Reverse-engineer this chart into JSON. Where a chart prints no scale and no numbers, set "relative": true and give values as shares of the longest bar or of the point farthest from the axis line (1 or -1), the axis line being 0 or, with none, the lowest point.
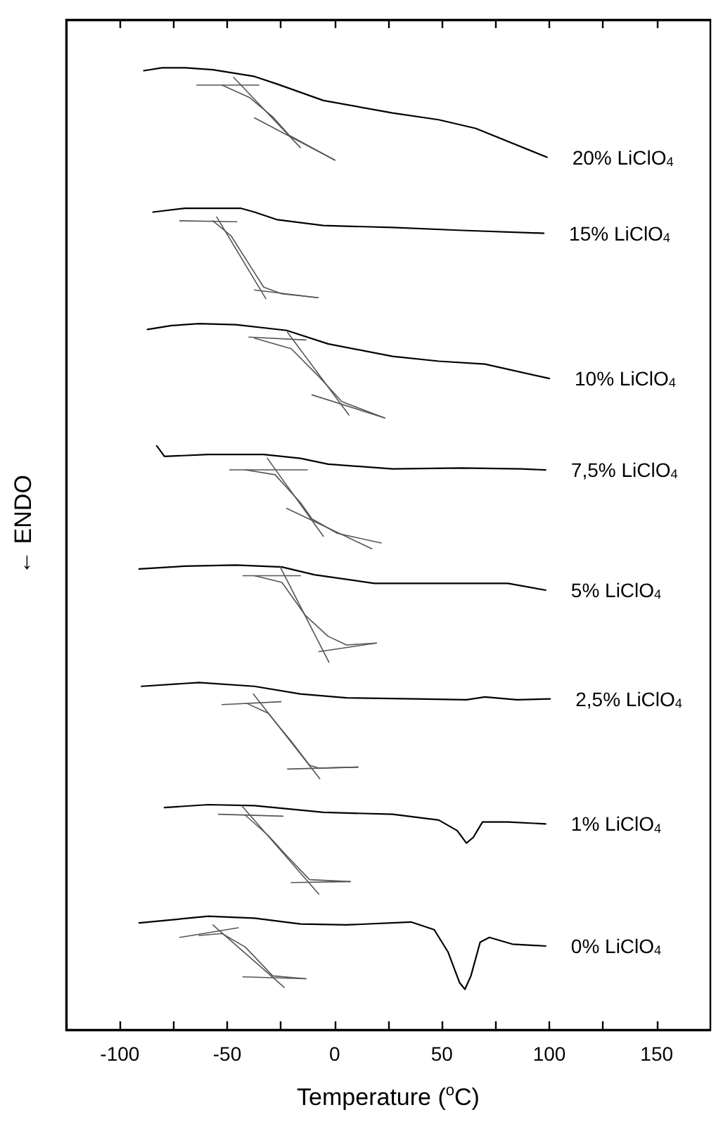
{
  "chart_data": {
    "type": "line",
    "relative": true,
    "marker": "none",
    "xlabel": "Temperature ($^{o}$C)",
    "ylabel": "← ENDO",
    "xlim": [
      -125,
      175
    ],
    "xticks": [
      -100,
      {
        "value": -75,
        "label": null
      },
      -50,
      {
        "value": -25,
        "label": null
      },
      0,
      {
        "value": 25,
        "label": null
      },
      50,
      {
        "value": 75,
        "label": null
      },
      100,
      {
        "value": 125,
        "label": null
      },
      150
    ],
    "series": [
      {
        "name": "20% LiClO$_{4}$",
        "color": "#000000",
        "x": [
          -88.8,
          -80.3,
          -69.5,
          -56.7,
          -37.3,
          -26.6,
          -5.2,
          27.0,
          48.5,
          65.7,
          98.9
        ],
        "values": [
          0.997,
          1.0,
          1.0,
          0.998,
          0.991,
          0.983,
          0.966,
          0.953,
          0.946,
          0.937,
          0.907
        ]
      },
      {
        "color": "#555555",
        "x": [
          -64.2,
          -35.2
        ],
        "values": [
          0.982,
          0.982
        ]
      },
      {
        "color": "#555555",
        "x": [
          -47.0,
          -15.9
        ],
        "values": [
          0.99,
          0.917
        ]
      },
      {
        "color": "#555555",
        "x": [
          -37.3,
          0.2
        ],
        "values": [
          0.948,
          0.904
        ]
      },
      {
        "color": "#555555",
        "x": [
          -52.4,
          -39.5,
          -28.8,
          -21.2,
          0.2
        ],
        "values": [
          0.982,
          0.969,
          0.949,
          0.93,
          0.904
        ]
      },
      {
        "name": "15% LiClO$_{4}$",
        "color": "#000000",
        "x": [
          -84.5,
          -69.5,
          -52.4,
          -43.8,
          -37.3,
          -26.6,
          -5.2,
          27.0,
          59.2,
          97.4
        ],
        "values": [
          0.85,
          0.854,
          0.854,
          0.854,
          0.85,
          0.842,
          0.836,
          0.834,
          0.831,
          0.828
        ]
      },
      {
        "color": "#555555",
        "x": [
          -72.1,
          -45.5
        ],
        "values": [
          0.841,
          0.84
        ]
      },
      {
        "color": "#555555",
        "x": [
          -54.9,
          -32.0
        ],
        "values": [
          0.845,
          0.76
        ]
      },
      {
        "color": "#555555",
        "x": [
          -37.3,
          -7.7
        ],
        "values": [
          0.769,
          0.761
        ]
      },
      {
        "color": "#555555",
        "x": [
          -56.7,
          -48.1,
          -37.3,
          -33.0,
          -24.5,
          -7.7
        ],
        "values": [
          0.841,
          0.825,
          0.787,
          0.772,
          0.765,
          0.761
        ]
      },
      {
        "name": "10% LiClO$_{4}$",
        "color": "#000000",
        "x": [
          -87.1,
          -76.0,
          -63.1,
          -45.9,
          -22.3,
          -3.0,
          27.0,
          48.5,
          70.0,
          100.0
        ],
        "values": [
          0.728,
          0.732,
          0.734,
          0.733,
          0.727,
          0.713,
          0.7,
          0.695,
          0.692,
          0.677
        ]
      },
      {
        "color": "#555555",
        "x": [
          -39.9,
          -13.3
        ],
        "values": [
          0.72,
          0.717
        ]
      },
      {
        "color": "#555555",
        "x": [
          -21.9,
          6.7
        ],
        "values": [
          0.725,
          0.639
        ]
      },
      {
        "color": "#555555",
        "x": [
          -10.5,
          23.4
        ],
        "values": [
          0.66,
          0.636
        ]
      },
      {
        "color": "#555555",
        "x": [
          -37.3,
          -20.2,
          -7.3,
          3.4,
          23.4
        ],
        "values": [
          0.719,
          0.708,
          0.679,
          0.653,
          0.636
        ]
      },
      {
        "name": "7,5% LiClO$_{4}$",
        "color": "#000000",
        "x": [
          -82.8,
          -79.2,
          -58.8,
          -33.0,
          -15.9,
          -3.0,
          27.0,
          59.2,
          87.1,
          98.3
        ],
        "values": [
          0.607,
          0.596,
          0.598,
          0.598,
          0.594,
          0.588,
          0.583,
          0.584,
          0.583,
          0.582
        ]
      },
      {
        "color": "#555555",
        "x": [
          -48.9,
          -12.7
        ],
        "values": [
          0.582,
          0.582
        ]
      },
      {
        "color": "#555555",
        "x": [
          -31.3,
          -5.2
        ],
        "values": [
          0.594,
          0.513
        ]
      },
      {
        "color": "#555555",
        "x": [
          -22.3,
          17.4
        ],
        "values": [
          0.542,
          0.5
        ]
      },
      {
        "color": "#555555",
        "x": [
          -41.6,
          -27.7,
          -15.9,
          -10.5,
          1.3,
          21.7
        ],
        "values": [
          0.582,
          0.577,
          0.548,
          0.531,
          0.516,
          0.506
        ]
      },
      {
        "name": "5% LiClO$_{4}$",
        "color": "#000000",
        "x": [
          -91.0,
          -69.5,
          -45.9,
          -24.5,
          -9.4,
          18.5,
          48.5,
          80.7,
          98.3
        ],
        "values": [
          0.479,
          0.482,
          0.483,
          0.481,
          0.473,
          0.464,
          0.464,
          0.464,
          0.457
        ]
      },
      {
        "color": "#555555",
        "x": [
          -42.7,
          -15.9
        ],
        "values": [
          0.472,
          0.472
        ]
      },
      {
        "color": "#555555",
        "x": [
          -25.5,
          -2.6
        ],
        "values": [
          0.482,
          0.382
        ]
      },
      {
        "color": "#555555",
        "x": [
          -7.3,
          19.5
        ],
        "values": [
          0.393,
          0.402
        ]
      },
      {
        "color": "#555555",
        "x": [
          -37.3,
          -24.5,
          -13.7,
          -3.0,
          5.6,
          19.5
        ],
        "values": [
          0.472,
          0.465,
          0.431,
          0.409,
          0.4,
          0.402
        ]
      },
      {
        "name": "2,5% LiClO$_{4}$",
        "color": "#000000",
        "x": [
          -89.9,
          -63.1,
          -37.3,
          -15.9,
          5.6,
          37.8,
          61.4,
          70.0,
          85.0,
          100.4
        ],
        "values": [
          0.357,
          0.361,
          0.357,
          0.349,
          0.345,
          0.344,
          0.343,
          0.346,
          0.343,
          0.344
        ]
      },
      {
        "color": "#555555",
        "x": [
          -52.4,
          -24.9
        ],
        "values": [
          0.338,
          0.341
        ]
      },
      {
        "color": "#555555",
        "x": [
          -37.8,
          -6.9
        ],
        "values": [
          0.349,
          0.261
        ]
      },
      {
        "color": "#555555",
        "x": [
          -21.9,
          10.9
        ],
        "values": [
          0.271,
          0.273
        ]
      },
      {
        "color": "#555555",
        "x": [
          -40.6,
          -30.9,
          -20.2,
          -11.6,
          -7.3,
          10.9
        ],
        "values": [
          0.339,
          0.329,
          0.3,
          0.275,
          0.272,
          0.273
        ]
      },
      {
        "name": "1% LiClO$_{4}$",
        "color": "#000000",
        "x": [
          -79.2,
          -58.8,
          -37.3,
          -5.2,
          27.0,
          48.5,
          57.1,
          61.4,
          64.6,
          68.9,
          80.7,
          98.3
        ],
        "values": [
          0.231,
          0.234,
          0.233,
          0.226,
          0.224,
          0.218,
          0.207,
          0.194,
          0.2,
          0.216,
          0.216,
          0.214
        ]
      },
      {
        "color": "#555555",
        "x": [
          -54.1,
          -24.0
        ],
        "values": [
          0.224,
          0.222
        ]
      },
      {
        "color": "#555555",
        "x": [
          -43.3,
          -7.3
        ],
        "values": [
          0.233,
          0.141
        ]
      },
      {
        "color": "#555555",
        "x": [
          -20.2,
          7.3
        ],
        "values": [
          0.153,
          0.154
        ]
      },
      {
        "color": "#555555",
        "x": [
          -41.6,
          -30.9,
          -22.3,
          -11.6,
          7.3
        ],
        "values": [
          0.223,
          0.202,
          0.181,
          0.156,
          0.154
        ]
      },
      {
        "name": "0% LiClO$_{4}$",
        "color": "#000000",
        "x": [
          -91.0,
          -58.8,
          -37.3,
          -15.9,
          5.6,
          35.6,
          46.4,
          52.8,
          58.2,
          60.7,
          63.5,
          67.8,
          72.1,
          82.8,
          98.3
        ],
        "values": [
          0.111,
          0.118,
          0.116,
          0.11,
          0.109,
          0.112,
          0.104,
          0.081,
          0.049,
          0.042,
          0.056,
          0.091,
          0.096,
          0.089,
          0.087
        ]
      },
      {
        "color": "#555555",
        "x": [
          -72.1,
          -44.8
        ],
        "values": [
          0.096,
          0.106
        ]
      },
      {
        "color": "#555555",
        "x": [
          -56.7,
          -23.4
        ],
        "values": [
          0.109,
          0.044
        ]
      },
      {
        "color": "#555555",
        "x": [
          -42.7,
          -13.3
        ],
        "values": [
          0.055,
          0.053
        ]
      },
      {
        "color": "#555555",
        "x": [
          -63.1,
          -52.4,
          -41.6,
          -28.8,
          -13.3
        ],
        "values": [
          0.098,
          0.1,
          0.086,
          0.056,
          0.053
        ]
      }
    ]
  }
}
